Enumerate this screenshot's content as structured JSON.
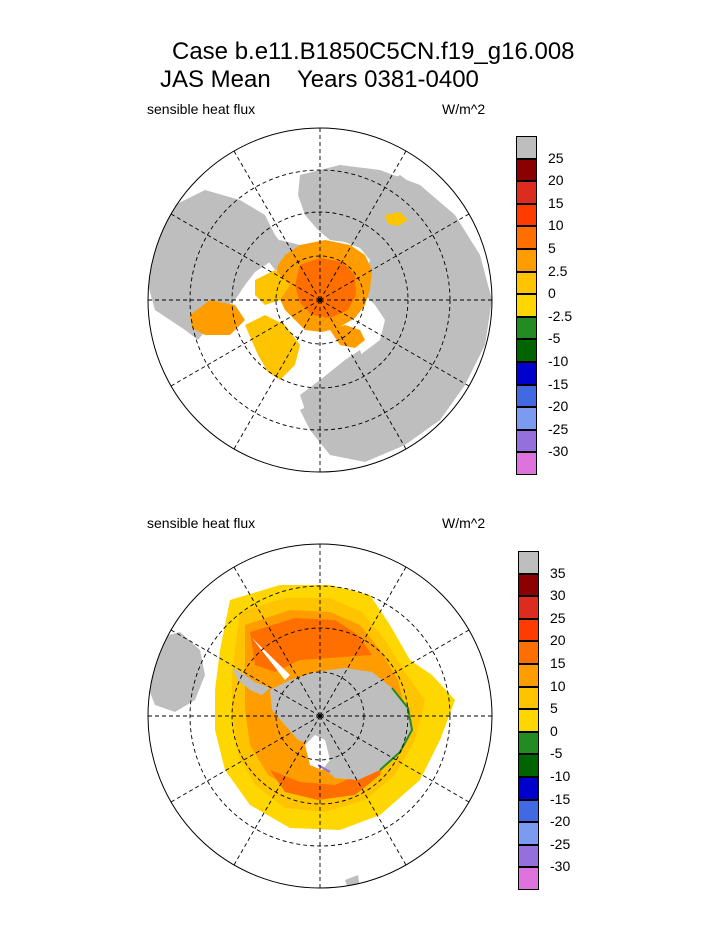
{
  "title": {
    "line1": "Case b.e11.B1850C5CN.f19_g16.008",
    "line2": "JAS Mean    Years 0381-0400"
  },
  "colors": {
    "land": "#bebebe",
    "sea": "#ffffff",
    "grid": "#000000"
  },
  "chart_data": [
    {
      "type": "heatmap",
      "projection": "north polar stereographic",
      "hemisphere": "north",
      "left_label": "sensible heat flux",
      "right_label": "W/m^2",
      "colorbar": {
        "colors": [
          "#de73de",
          "#9370db",
          "#7b9bf0",
          "#4169e1",
          "#0000cd",
          "#006400",
          "#228b22",
          "#ffd700",
          "#ffc400",
          "#ff9d00",
          "#ff6f00",
          "#ff3c00",
          "#dc2b1f",
          "#8b0000",
          "#bebebe"
        ],
        "labels": [
          "-30",
          "-25",
          "-20",
          "-15",
          "-10",
          "-5",
          "-2.5",
          "0",
          "2.5",
          "5",
          "10",
          "15",
          "20",
          "25"
        ]
      }
    },
    {
      "type": "heatmap",
      "projection": "south polar stereographic",
      "hemisphere": "south",
      "left_label": "sensible heat flux",
      "right_label": "W/m^2",
      "colorbar": {
        "colors": [
          "#de73de",
          "#9370db",
          "#7b9bf0",
          "#4169e1",
          "#0000cd",
          "#006400",
          "#228b22",
          "#ffd700",
          "#ffc400",
          "#ff9d00",
          "#ff6f00",
          "#ff3c00",
          "#dc2b1f",
          "#8b0000",
          "#bebebe"
        ],
        "labels": [
          "-30",
          "-25",
          "-20",
          "-15",
          "-10",
          "-5",
          "0",
          "5",
          "10",
          "15",
          "20",
          "25",
          "30",
          "35"
        ]
      }
    }
  ]
}
